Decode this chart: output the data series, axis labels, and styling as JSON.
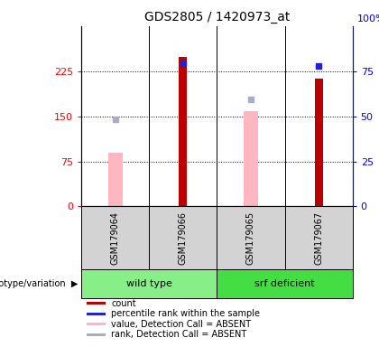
{
  "title": "GDS2805 / 1420973_at",
  "samples": [
    "GSM179064",
    "GSM179066",
    "GSM179065",
    "GSM179067"
  ],
  "count_values": [
    null,
    249,
    null,
    213
  ],
  "percentile_rank_values": [
    null,
    238,
    null,
    233
  ],
  "absent_value_bars": [
    90,
    null,
    158,
    null
  ],
  "absent_rank_dots": [
    145,
    null,
    178,
    null
  ],
  "ylim_left": [
    0,
    300
  ],
  "ylim_right": [
    0,
    100
  ],
  "yticks_left": [
    0,
    75,
    150,
    225
  ],
  "yticks_right": [
    0,
    25,
    50,
    75
  ],
  "count_color": "#BB0000",
  "percentile_color": "#2222CC",
  "absent_value_color": "#FFB6C1",
  "absent_rank_color": "#AAAACC",
  "genotype_groups": [
    {
      "label": "wild type",
      "indices": [
        0,
        1
      ],
      "color": "#88EE88"
    },
    {
      "label": "srf deficient",
      "indices": [
        2,
        3
      ],
      "color": "#44DD44"
    }
  ],
  "legend_items": [
    {
      "color": "#BB0000",
      "label": "count"
    },
    {
      "color": "#2222CC",
      "label": "percentile rank within the sample"
    },
    {
      "color": "#FFB6C1",
      "label": "value, Detection Call = ABSENT"
    },
    {
      "color": "#AAAACC",
      "label": "rank, Detection Call = ABSENT"
    }
  ]
}
